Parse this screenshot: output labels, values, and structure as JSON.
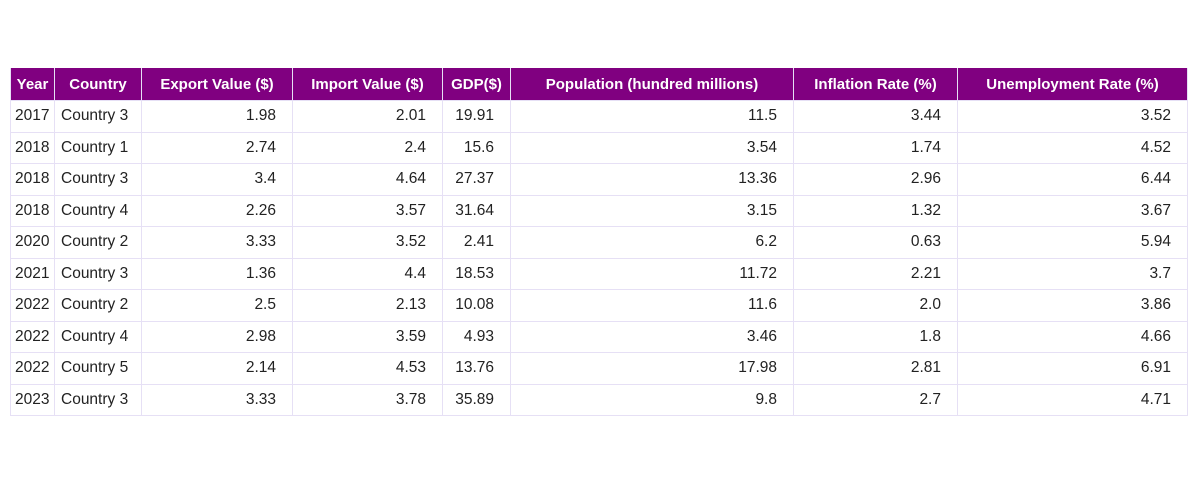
{
  "chart_data": {
    "type": "table",
    "columns": [
      "Year",
      "Country",
      "Export Value ($)",
      "Import Value ($)",
      "GDP($)",
      "Population (hundred millions)",
      "Inflation Rate (%)",
      "Unemployment Rate (%)"
    ],
    "rows": [
      [
        "2017",
        "Country 3",
        "1.98",
        "2.01",
        "19.91",
        "11.5",
        "3.44",
        "3.52"
      ],
      [
        "2018",
        "Country 1",
        "2.74",
        "2.4",
        "15.6",
        "3.54",
        "1.74",
        "4.52"
      ],
      [
        "2018",
        "Country 3",
        "3.4",
        "4.64",
        "27.37",
        "13.36",
        "2.96",
        "6.44"
      ],
      [
        "2018",
        "Country 4",
        "2.26",
        "3.57",
        "31.64",
        "3.15",
        "1.32",
        "3.67"
      ],
      [
        "2020",
        "Country 2",
        "3.33",
        "3.52",
        "2.41",
        "6.2",
        "0.63",
        "5.94"
      ],
      [
        "2021",
        "Country 3",
        "1.36",
        "4.4",
        "18.53",
        "11.72",
        "2.21",
        "3.7"
      ],
      [
        "2022",
        "Country 2",
        "2.5",
        "2.13",
        "10.08",
        "11.6",
        "2.0",
        "3.86"
      ],
      [
        "2022",
        "Country 4",
        "2.98",
        "3.59",
        "4.93",
        "3.46",
        "1.8",
        "4.66"
      ],
      [
        "2022",
        "Country 5",
        "2.14",
        "4.53",
        "13.76",
        "17.98",
        "2.81",
        "6.91"
      ],
      [
        "2023",
        "Country 3",
        "3.33",
        "3.78",
        "35.89",
        "9.8",
        "2.7",
        "4.71"
      ]
    ],
    "header_color": "#800080",
    "header_text_color": "#ffffff",
    "border_color": "#e6e0f5"
  }
}
